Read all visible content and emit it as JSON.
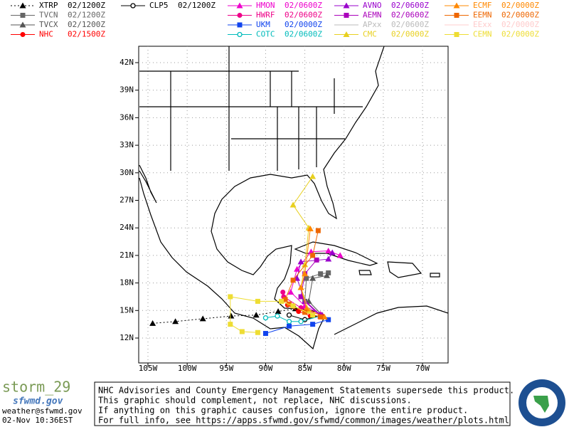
{
  "legend": [
    {
      "name": "XTRP",
      "time": "02/1200Z",
      "color": "#000000",
      "marker": "triangle",
      "dotted": true,
      "lon": [
        -104.4,
        -101.5,
        -98,
        -94.4,
        -91.2,
        -88.4,
        -86.2
      ],
      "lat": [
        13.6,
        13.8,
        14.1,
        14.4,
        14.5,
        14.9,
        15.2
      ]
    },
    {
      "name": "TVCN",
      "time": "02/1200Z",
      "color": "#666666",
      "marker": "square",
      "lon": [
        -83,
        -85,
        -84.8,
        -83,
        -82
      ],
      "lat": [
        14.5,
        16,
        18.5,
        19,
        19.1
      ]
    },
    {
      "name": "TVCX",
      "time": "02/1200Z",
      "color": "#555555",
      "marker": "triangle",
      "lon": [
        -82.8,
        -84.5,
        -84,
        -82.2
      ],
      "lat": [
        14.5,
        16,
        18.5,
        18.8
      ]
    },
    {
      "name": "NHC",
      "time": "02/1500Z",
      "color": "#ff0000",
      "marker": "circle",
      "lon": [
        -82.8,
        -84.3,
        -85.8,
        -87.2
      ],
      "lat": [
        14.4,
        14.4,
        14.9,
        15.6
      ]
    },
    {
      "name": "CLP5",
      "time": "02/1200Z",
      "color": "#000000",
      "marker": "open-circle",
      "lon": [
        -83,
        -85,
        -87
      ],
      "lat": [
        14.5,
        14,
        14.5
      ]
    },
    {
      "name": "HMON",
      "time": "02/0600Z",
      "color": "#ee00cc",
      "marker": "triangle",
      "lon": [
        -83,
        -85,
        -86.8,
        -86,
        -84.2,
        -82,
        -80.5
      ],
      "lat": [
        14.6,
        15.5,
        17,
        19.5,
        21.4,
        21.5,
        21
      ]
    },
    {
      "name": "HWRF",
      "time": "02/0600Z",
      "color": "#ee0088",
      "marker": "circle",
      "lon": [
        -83,
        -85.5,
        -87.7,
        -87.8
      ],
      "lat": [
        14.5,
        15.3,
        16.5,
        17
      ]
    },
    {
      "name": "UKM",
      "time": "02/0000Z",
      "color": "#1144ee",
      "marker": "square",
      "lon": [
        -82,
        -84,
        -87,
        -90
      ],
      "lat": [
        14,
        13.5,
        13.3,
        12.5
      ]
    },
    {
      "name": "COTC",
      "time": "02/0600Z",
      "color": "#00bbbb",
      "marker": "open-circle",
      "lon": [
        -83,
        -85.5,
        -87,
        -88.5,
        -90
      ],
      "lat": [
        14.4,
        13.8,
        13.8,
        14.4,
        14.2
      ]
    },
    {
      "name": "AVNO",
      "time": "02/0600Z",
      "color": "#9900cc",
      "marker": "triangle",
      "lon": [
        -83,
        -85,
        -86,
        -85.5,
        -82,
        -81.5
      ],
      "lat": [
        14.4,
        16,
        18.5,
        20.3,
        20.6,
        21.3
      ]
    },
    {
      "name": "AEMN",
      "time": "02/0600Z",
      "color": "#aa00bb",
      "marker": "square",
      "lon": [
        -83,
        -85.5,
        -85,
        -83.5
      ],
      "lat": [
        14.5,
        16.5,
        19,
        20.5
      ]
    },
    {
      "name": "APxx",
      "time": "02/0600Z",
      "color": "#bbbbbb",
      "marker": "none"
    },
    {
      "name": "CMC",
      "time": "02/0000Z",
      "color": "#e8d020",
      "marker": "triangle",
      "lon": [
        -84.5,
        -85.5,
        -85,
        -84.5,
        -86.5,
        -84
      ],
      "lat": [
        15,
        17.5,
        20,
        24,
        26.5,
        29.6
      ]
    },
    {
      "name": "ECMF",
      "time": "02/0000Z",
      "color": "#ff8800",
      "marker": "triangle",
      "lon": [
        -82.5,
        -84.8,
        -85.5,
        -85,
        -84.3
      ],
      "lat": [
        14.3,
        15.2,
        17.5,
        19,
        23.9
      ]
    },
    {
      "name": "EEMN",
      "time": "02/0000Z",
      "color": "#ee6600",
      "marker": "square",
      "lon": [
        -83,
        -85,
        -87,
        -87.5,
        -86.5,
        -84,
        -83.3
      ],
      "lat": [
        14.3,
        14.8,
        15.7,
        16.2,
        18.3,
        21,
        23.7
      ]
    },
    {
      "name": "EExx",
      "time": "02/0000Z",
      "color": "#ffcccc",
      "marker": "none"
    },
    {
      "name": "CEMN",
      "time": "02/0000Z",
      "color": "#eedd33",
      "marker": "square",
      "lon": [
        -84,
        -86.5,
        -88,
        -91,
        -94.5,
        -94.5,
        -93,
        -91
      ],
      "lat": [
        14.5,
        15.5,
        16,
        16,
        16.5,
        13.5,
        12.7,
        12.6
      ]
    }
  ],
  "map": {
    "lat_ticks": [
      {
        "value": 42,
        "label": "42N"
      },
      {
        "value": 39,
        "label": "39N"
      },
      {
        "value": 36,
        "label": "36N"
      },
      {
        "value": 33,
        "label": "33N"
      },
      {
        "value": 30,
        "label": "30N"
      },
      {
        "value": 27,
        "label": "27N"
      },
      {
        "value": 24,
        "label": "24N"
      },
      {
        "value": 21,
        "label": "21N"
      },
      {
        "value": 18,
        "label": "18N"
      },
      {
        "value": 15,
        "label": "15N"
      },
      {
        "value": 12,
        "label": "12N"
      }
    ],
    "lon_ticks": [
      {
        "value": -105,
        "label": "105W"
      },
      {
        "value": -100,
        "label": "100W"
      },
      {
        "value": -95,
        "label": "95W"
      },
      {
        "value": -90,
        "label": "90W"
      },
      {
        "value": -85,
        "label": "85W"
      },
      {
        "value": -80,
        "label": "80W"
      },
      {
        "value": -75,
        "label": "75W"
      },
      {
        "value": -70,
        "label": "70W"
      }
    ]
  },
  "footer": {
    "storm": "storm_29",
    "logo": "sfwmd.gov",
    "email": "weather@sfwmd.gov",
    "date": "02-Nov 10:36EST",
    "notice": [
      "NHC Advisories and County Emergency Management Statements supersede this product.",
      "This graphic should complement, not replace, NHC discussions.",
      "If anything on this graphic causes confusion, ignore the entire product.",
      "For full info, see  https://apps.sfwmd.gov/sfwmd/common/images/weather/plots.html"
    ]
  }
}
